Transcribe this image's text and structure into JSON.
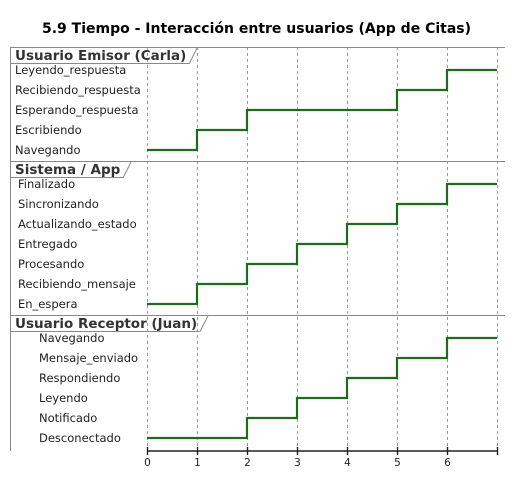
{
  "title": "5.9 Tiempo - Interacción entre usuarios (App de Citas)",
  "time_ticks": [
    0,
    1,
    2,
    3,
    4,
    5,
    6
  ],
  "line_color": "#1e6b1e",
  "lanes": [
    {
      "id": "emisor",
      "title": "Usuario Emisor (Carla)",
      "states": [
        "Leyendo_respuesta",
        "Recibiendo_respuesta",
        "Esperando_respuesta",
        "Escribiendo",
        "Navegando"
      ],
      "timeline": [
        {
          "t": 0,
          "state": "Navegando"
        },
        {
          "t": 1,
          "state": "Escribiendo"
        },
        {
          "t": 2,
          "state": "Esperando_respuesta"
        },
        {
          "t": 5,
          "state": "Recibiendo_respuesta"
        },
        {
          "t": 6,
          "state": "Leyendo_respuesta"
        }
      ]
    },
    {
      "id": "sistema",
      "title": "Sistema / App",
      "states": [
        "Finalizado",
        "Sincronizando",
        "Actualizando_estado",
        "Entregado",
        "Procesando",
        "Recibiendo_mensaje",
        "En_espera"
      ],
      "timeline": [
        {
          "t": 0,
          "state": "En_espera"
        },
        {
          "t": 1,
          "state": "Recibiendo_mensaje"
        },
        {
          "t": 2,
          "state": "Procesando"
        },
        {
          "t": 3,
          "state": "Entregado"
        },
        {
          "t": 4,
          "state": "Actualizando_estado"
        },
        {
          "t": 5,
          "state": "Sincronizando"
        },
        {
          "t": 6,
          "state": "Finalizado"
        }
      ]
    },
    {
      "id": "receptor",
      "title": "Usuario Receptor (Juan)",
      "states": [
        "Navegando",
        "Mensaje_enviado",
        "Respondiendo",
        "Leyendo",
        "Notificado",
        "Desconectado"
      ],
      "timeline": [
        {
          "t": 0,
          "state": "Desconectado"
        },
        {
          "t": 2,
          "state": "Notificado"
        },
        {
          "t": 3,
          "state": "Leyendo"
        },
        {
          "t": 4,
          "state": "Respondiendo"
        },
        {
          "t": 5,
          "state": "Mensaje_enviado"
        },
        {
          "t": 6,
          "state": "Navegando"
        }
      ]
    }
  ]
}
